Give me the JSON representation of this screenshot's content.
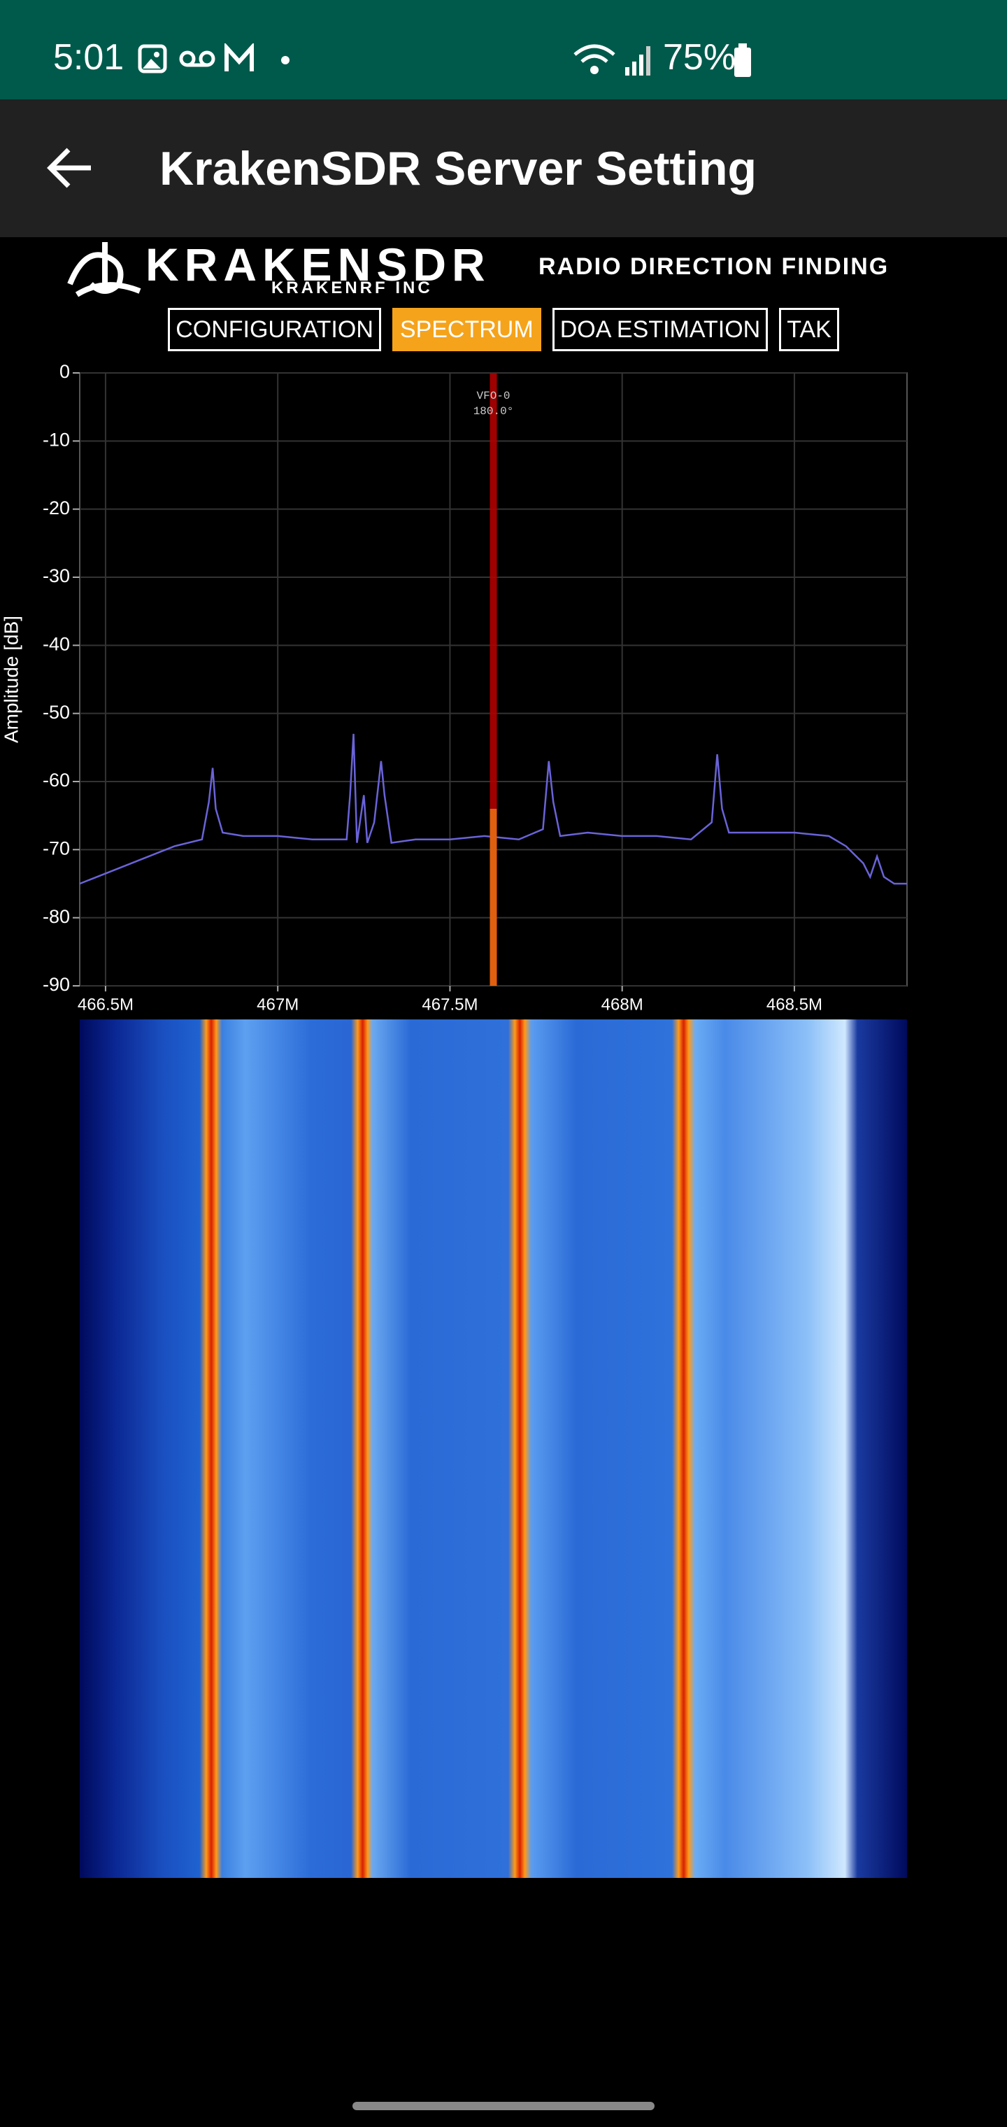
{
  "status_bar": {
    "time": "5:01",
    "battery": "75%"
  },
  "app_bar": {
    "title": "KrakenSDR Server Setting"
  },
  "header": {
    "logo": "KRAKENSDR",
    "logo_sub": "KRAKENRF INC",
    "tagline": "RADIO DIRECTION FINDING"
  },
  "tabs": [
    {
      "label": "CONFIGURATION",
      "active": false
    },
    {
      "label": "SPECTRUM",
      "active": true
    },
    {
      "label": "DOA ESTIMATION",
      "active": false
    },
    {
      "label": "TAK",
      "active": false
    }
  ],
  "chart_data": {
    "type": "line",
    "ylabel": "Amplitude [dB]",
    "color": "#6a63d8",
    "grid": true,
    "xlim": [
      466.425,
      468.827
    ],
    "ylim": [
      -90,
      0
    ],
    "xticks": [
      {
        "value": 466.5,
        "label": "466.5M"
      },
      {
        "value": 467,
        "label": "467M"
      },
      {
        "value": 467.5,
        "label": "467.5M"
      },
      {
        "value": 468,
        "label": "468M"
      },
      {
        "value": 468.5,
        "label": "468.5M"
      }
    ],
    "yticks": [
      -90,
      -80,
      -70,
      -60,
      -50,
      -40,
      -30,
      -20,
      -10,
      0
    ],
    "vfo": {
      "x": 467.626,
      "label": "VFO-0",
      "angle": "180.0°",
      "level": -64
    },
    "x": [
      466.425,
      466.5,
      466.6,
      466.7,
      466.78,
      466.8,
      466.811,
      466.82,
      466.84,
      466.9,
      467.0,
      467.1,
      467.2,
      467.21,
      467.22,
      467.23,
      467.25,
      467.26,
      467.28,
      467.3,
      467.31,
      467.33,
      467.4,
      467.5,
      467.6,
      467.7,
      467.77,
      467.787,
      467.8,
      467.82,
      467.9,
      468.0,
      468.1,
      468.2,
      468.26,
      468.276,
      468.29,
      468.31,
      468.4,
      468.5,
      468.6,
      468.65,
      468.7,
      468.72,
      468.74,
      468.76,
      468.79,
      468.827
    ],
    "values": [
      -75,
      -73.5,
      -71.5,
      -69.5,
      -68.5,
      -63,
      -58,
      -64,
      -67.5,
      -68,
      -68,
      -68.5,
      -68.5,
      -62,
      -53,
      -69,
      -62,
      -69,
      -66,
      -57,
      -62,
      -69,
      -68.5,
      -68.5,
      -68,
      -68.5,
      -67,
      -57,
      -63,
      -68,
      -67.5,
      -68,
      -68,
      -68.5,
      -66,
      -56,
      -64,
      -67.5,
      -67.5,
      -67.5,
      -68,
      -69.5,
      -72,
      -74,
      -71,
      -74,
      -75,
      -75
    ]
  }
}
